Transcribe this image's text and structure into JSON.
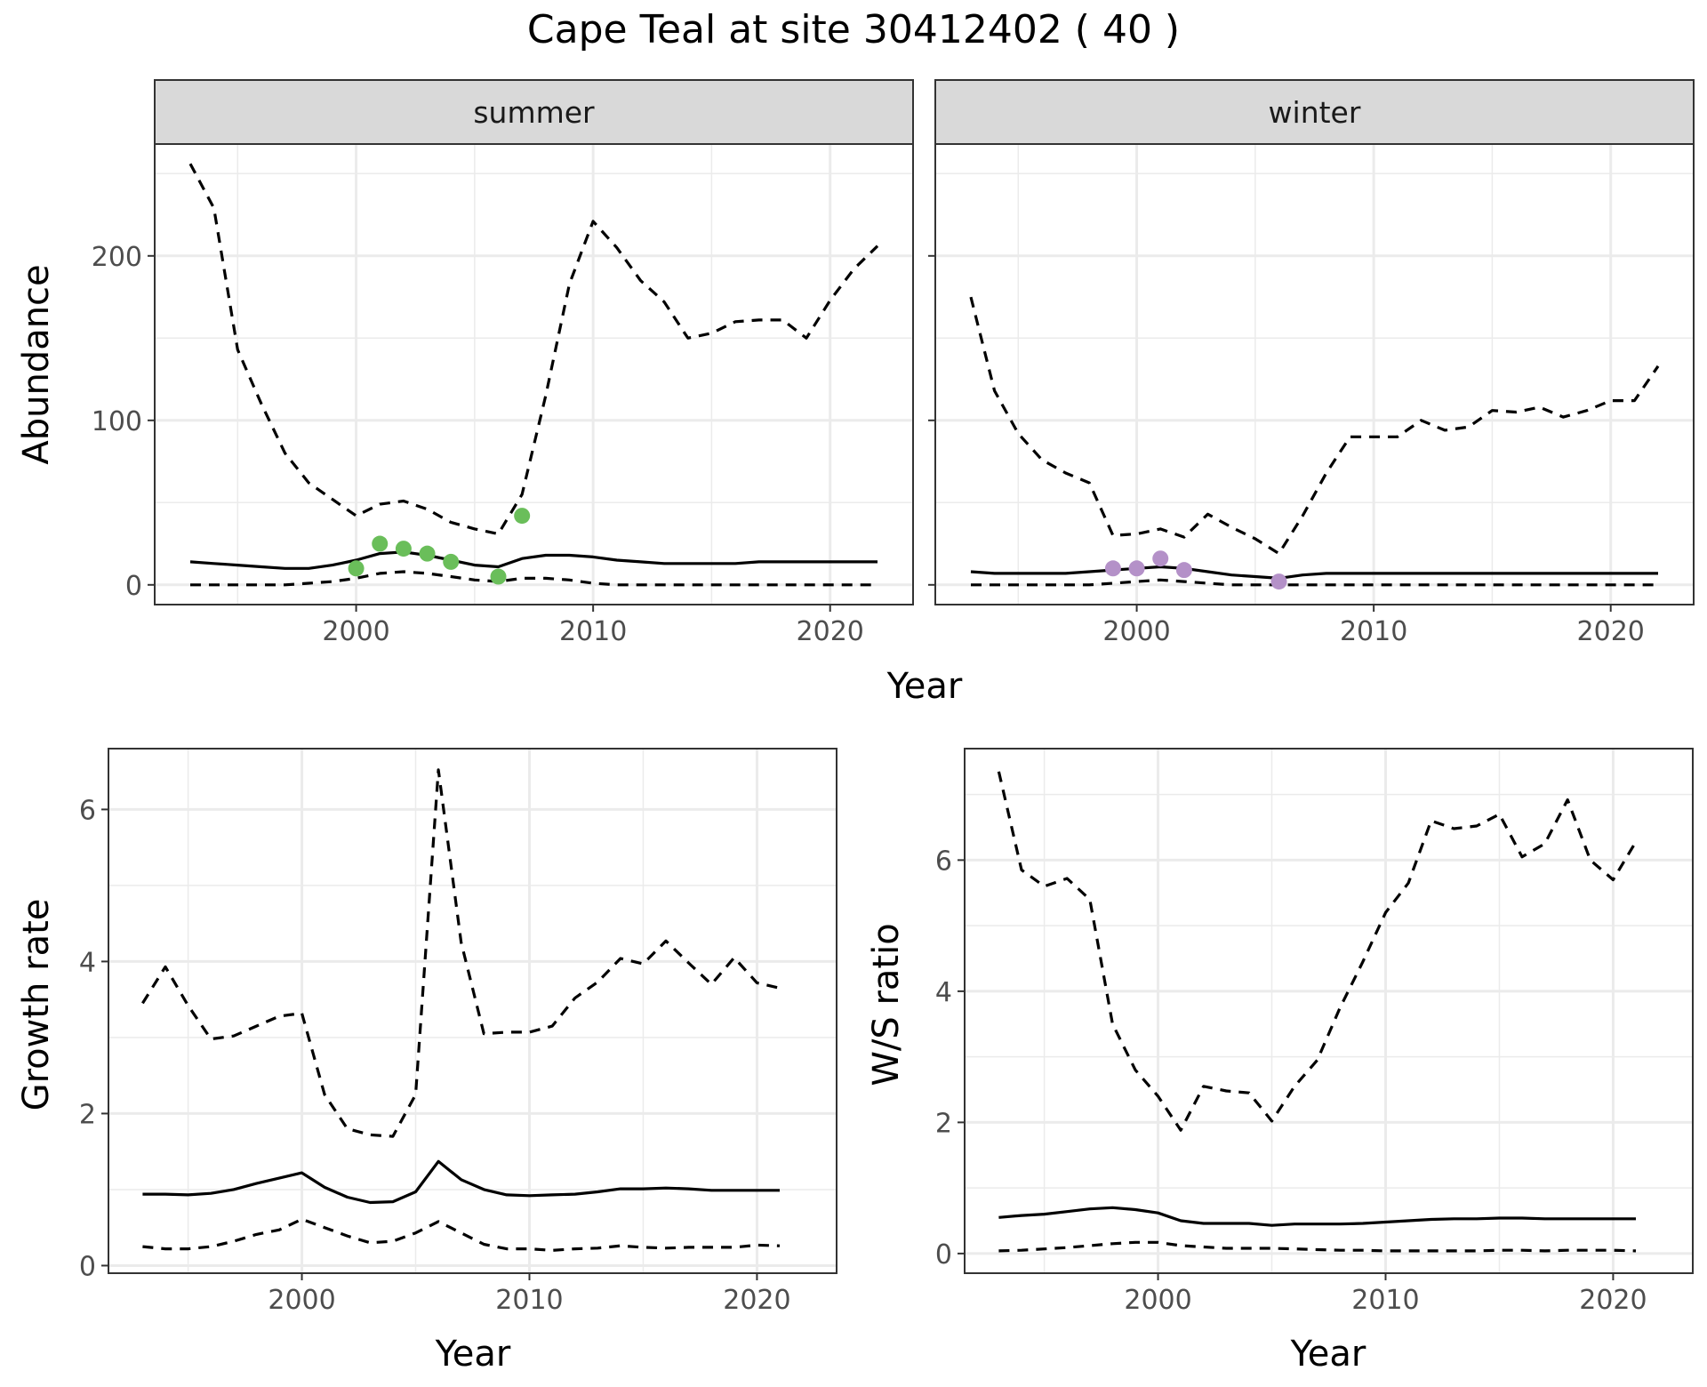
{
  "title": "Cape Teal at site 30412402 ( 40 )",
  "colors": {
    "summer_points": "#6ABE5A",
    "winter_points": "#B491C8",
    "line": "#000000",
    "strip_fill": "#D9D9D9",
    "grid": "#EBEBEB",
    "panel_border": "#333333"
  },
  "chart_data": [
    {
      "type": "line",
      "panel": "summer",
      "strip": "summer",
      "xlabel": "Year",
      "ylabel": "Abundance",
      "xlim": [
        1991.5,
        2023.5
      ],
      "ylim": [
        -12,
        268
      ],
      "xticks": [
        2000,
        2010,
        2020
      ],
      "yticks": [
        0,
        100,
        200
      ],
      "x": [
        1993,
        1994,
        1995,
        1996,
        1997,
        1998,
        1999,
        2000,
        2001,
        2002,
        2003,
        2004,
        2005,
        2006,
        2007,
        2008,
        2009,
        2010,
        2011,
        2012,
        2013,
        2014,
        2015,
        2016,
        2017,
        2018,
        2019,
        2020,
        2021,
        2022
      ],
      "series": [
        {
          "style": "solid",
          "values": [
            14,
            13,
            12,
            11,
            10,
            10,
            12,
            15,
            19,
            20,
            18,
            15,
            12,
            11,
            16,
            18,
            18,
            17,
            15,
            14,
            13,
            13,
            13,
            13,
            14,
            14,
            14,
            14,
            14,
            14
          ]
        },
        {
          "style": "dashed",
          "values": [
            256,
            229,
            143,
            110,
            80,
            62,
            52,
            42,
            49,
            51,
            46,
            38,
            34,
            31,
            55,
            115,
            183,
            221,
            205,
            185,
            172,
            150,
            153,
            160,
            161,
            161,
            150,
            173,
            192,
            206
          ]
        },
        {
          "style": "dashed",
          "values": [
            0,
            0,
            0,
            0,
            0,
            1,
            2,
            4,
            7,
            8,
            7,
            5,
            3,
            2,
            4,
            4,
            3,
            1,
            0,
            0,
            0,
            0,
            0,
            0,
            0,
            0,
            0,
            0,
            0,
            0
          ]
        }
      ],
      "points": [
        {
          "x": 2000,
          "y": 10
        },
        {
          "x": 2001,
          "y": 25
        },
        {
          "x": 2002,
          "y": 22
        },
        {
          "x": 2003,
          "y": 19
        },
        {
          "x": 2004,
          "y": 14
        },
        {
          "x": 2006,
          "y": 5
        },
        {
          "x": 2007,
          "y": 42
        }
      ]
    },
    {
      "type": "line",
      "panel": "winter",
      "strip": "winter",
      "xlabel": "Year",
      "ylabel": "Abundance",
      "xlim": [
        1991.5,
        2023.5
      ],
      "ylim": [
        -12,
        268
      ],
      "xticks": [
        2000,
        2010,
        2020
      ],
      "yticks": [
        0,
        100,
        200
      ],
      "x": [
        1993,
        1994,
        1995,
        1996,
        1997,
        1998,
        1999,
        2000,
        2001,
        2002,
        2003,
        2004,
        2005,
        2006,
        2007,
        2008,
        2009,
        2010,
        2011,
        2012,
        2013,
        2014,
        2015,
        2016,
        2017,
        2018,
        2019,
        2020,
        2021,
        2022
      ],
      "series": [
        {
          "style": "solid",
          "values": [
            8,
            7,
            7,
            7,
            7,
            8,
            9,
            10,
            11,
            10,
            8,
            6,
            5,
            4,
            6,
            7,
            7,
            7,
            7,
            7,
            7,
            7,
            7,
            7,
            7,
            7,
            7,
            7,
            7,
            7
          ]
        },
        {
          "style": "dashed",
          "values": [
            175,
            118,
            92,
            76,
            68,
            62,
            30,
            31,
            34,
            29,
            43,
            35,
            28,
            19,
            42,
            68,
            90,
            90,
            90,
            100,
            94,
            96,
            106,
            105,
            108,
            102,
            106,
            112,
            112,
            133
          ]
        },
        {
          "style": "dashed",
          "values": [
            0,
            0,
            0,
            0,
            0,
            0,
            1,
            2,
            3,
            2,
            1,
            0,
            0,
            0,
            0,
            0,
            0,
            0,
            0,
            0,
            0,
            0,
            0,
            0,
            0,
            0,
            0,
            0,
            0,
            0
          ]
        }
      ],
      "points": [
        {
          "x": 1999,
          "y": 10
        },
        {
          "x": 2000,
          "y": 10
        },
        {
          "x": 2001,
          "y": 16
        },
        {
          "x": 2002,
          "y": 9
        },
        {
          "x": 2006,
          "y": 2
        }
      ]
    },
    {
      "type": "line",
      "panel": "growth",
      "xlabel": "Year",
      "ylabel": "Growth rate",
      "xlim": [
        1991.5,
        2023.5
      ],
      "ylim": [
        -0.1,
        6.8
      ],
      "xticks": [
        2000,
        2010,
        2020
      ],
      "yticks": [
        0,
        2,
        4,
        6
      ],
      "x": [
        1993,
        1994,
        1995,
        1996,
        1997,
        1998,
        1999,
        2000,
        2001,
        2002,
        2003,
        2004,
        2005,
        2006,
        2007,
        2008,
        2009,
        2010,
        2011,
        2012,
        2013,
        2014,
        2015,
        2016,
        2017,
        2018,
        2019,
        2020,
        2021
      ],
      "series": [
        {
          "style": "solid",
          "values": [
            0.94,
            0.94,
            0.93,
            0.95,
            1.0,
            1.08,
            1.15,
            1.22,
            1.03,
            0.9,
            0.83,
            0.84,
            0.97,
            1.37,
            1.13,
            1.0,
            0.93,
            0.92,
            0.93,
            0.94,
            0.97,
            1.01,
            1.01,
            1.02,
            1.01,
            0.99,
            0.99,
            0.99,
            0.99
          ]
        },
        {
          "style": "dashed",
          "values": [
            3.45,
            3.93,
            3.42,
            2.98,
            3.02,
            3.15,
            3.28,
            3.32,
            2.25,
            1.8,
            1.72,
            1.7,
            2.25,
            6.52,
            4.25,
            3.05,
            3.07,
            3.07,
            3.15,
            3.52,
            3.73,
            4.04,
            3.97,
            4.27,
            3.98,
            3.7,
            4.05,
            3.72,
            3.65
          ]
        },
        {
          "style": "dashed",
          "values": [
            0.25,
            0.22,
            0.22,
            0.25,
            0.32,
            0.41,
            0.47,
            0.61,
            0.5,
            0.39,
            0.3,
            0.32,
            0.43,
            0.58,
            0.43,
            0.28,
            0.22,
            0.22,
            0.2,
            0.22,
            0.23,
            0.26,
            0.24,
            0.23,
            0.24,
            0.24,
            0.24,
            0.27,
            0.26
          ]
        }
      ]
    },
    {
      "type": "line",
      "panel": "ratio",
      "xlabel": "Year",
      "ylabel": "W/S ratio",
      "xlim": [
        1991.5,
        2023.5
      ],
      "ylim": [
        -0.3,
        7.7
      ],
      "xticks": [
        2000,
        2010,
        2020
      ],
      "yticks": [
        0,
        2,
        4,
        6
      ],
      "x": [
        1993,
        1994,
        1995,
        1996,
        1997,
        1998,
        1999,
        2000,
        2001,
        2002,
        2003,
        2004,
        2005,
        2006,
        2007,
        2008,
        2009,
        2010,
        2011,
        2012,
        2013,
        2014,
        2015,
        2016,
        2017,
        2018,
        2019,
        2020,
        2021
      ],
      "series": [
        {
          "style": "solid",
          "values": [
            0.55,
            0.58,
            0.6,
            0.64,
            0.68,
            0.7,
            0.67,
            0.62,
            0.5,
            0.46,
            0.46,
            0.46,
            0.43,
            0.45,
            0.45,
            0.45,
            0.46,
            0.48,
            0.5,
            0.52,
            0.53,
            0.53,
            0.54,
            0.54,
            0.53,
            0.53,
            0.53,
            0.53,
            0.53
          ]
        },
        {
          "style": "dashed",
          "values": [
            7.35,
            5.85,
            5.6,
            5.72,
            5.4,
            3.5,
            2.8,
            2.4,
            1.88,
            2.55,
            2.48,
            2.45,
            2.02,
            2.55,
            2.95,
            3.75,
            4.45,
            5.2,
            5.65,
            6.6,
            6.48,
            6.52,
            6.7,
            6.05,
            6.25,
            6.92,
            6.0,
            5.7,
            6.28
          ]
        },
        {
          "style": "dashed",
          "values": [
            0.04,
            0.05,
            0.07,
            0.09,
            0.12,
            0.15,
            0.17,
            0.17,
            0.12,
            0.1,
            0.08,
            0.08,
            0.08,
            0.07,
            0.06,
            0.05,
            0.05,
            0.04,
            0.04,
            0.04,
            0.04,
            0.04,
            0.05,
            0.05,
            0.04,
            0.05,
            0.05,
            0.05,
            0.04
          ]
        }
      ]
    }
  ]
}
